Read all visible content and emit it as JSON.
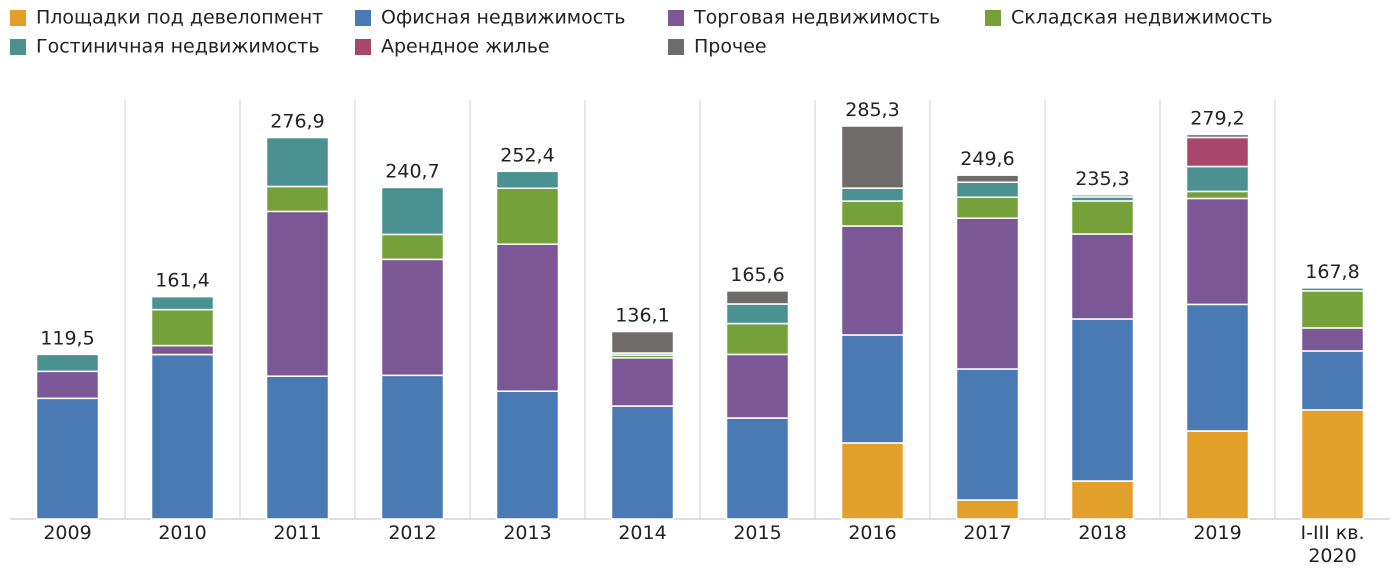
{
  "chart_data": {
    "type": "stacked-bar",
    "categories": [
      "2009",
      "2010",
      "2011",
      "2012",
      "2013",
      "2014",
      "2015",
      "2016",
      "2017",
      "2018",
      "2019",
      "I-III кв. 2020"
    ],
    "series": [
      {
        "name": "Площадки под девелопмент",
        "color": "#e2a02b",
        "values": [
          0,
          0,
          0,
          0,
          0,
          0,
          0,
          55.2,
          13.8,
          27.6,
          63.9,
          79.2
        ]
      },
      {
        "name": "Офисная недвижимость",
        "color": "#4a7ab4",
        "values": [
          87.6,
          119.4,
          103.7,
          104.3,
          92.8,
          82,
          73.3,
          78.4,
          95.1,
          117.6,
          91.9,
          42.8
        ]
      },
      {
        "name": "Торговая недвижимость",
        "color": "#7b5796",
        "values": [
          19.6,
          6.5,
          119.6,
          84.2,
          106.7,
          35,
          46.2,
          79.1,
          109.5,
          61.7,
          76.9,
          16.7
        ]
      },
      {
        "name": "Складская недвижимость",
        "color": "#76a03a",
        "values": [
          0,
          26.1,
          18.1,
          18.1,
          40.6,
          2,
          22.4,
          18.1,
          15.2,
          24,
          5.1,
          26.9
        ]
      },
      {
        "name": "Гостиничная недвижимость",
        "color": "#4b9191",
        "values": [
          12.3,
          9.4,
          35.5,
          34.1,
          12.3,
          1.5,
          14.2,
          9.4,
          10.9,
          2.9,
          18.1,
          2.2
        ]
      },
      {
        "name": "Арендное жилье",
        "color": "#a8476b",
        "values": [
          0,
          0,
          0,
          0,
          0,
          0,
          0,
          0,
          0,
          0,
          21.1,
          0
        ]
      },
      {
        "name": "Прочее",
        "color": "#6f6b6b",
        "values": [
          0,
          0,
          0,
          0,
          0,
          15.6,
          9.5,
          45.1,
          5.1,
          1.5,
          2.2,
          0
        ]
      }
    ],
    "totals": [
      119.5,
      161.4,
      276.9,
      240.7,
      252.4,
      136.1,
      165.6,
      285.3,
      249.6,
      235.3,
      279.2,
      167.8
    ],
    "total_labels": [
      "119,5",
      "161,4",
      "276,9",
      "240,7",
      "252,4",
      "136,1",
      "165,6",
      "285,3",
      "249,6",
      "235,3",
      "279,2",
      "167,8"
    ]
  }
}
